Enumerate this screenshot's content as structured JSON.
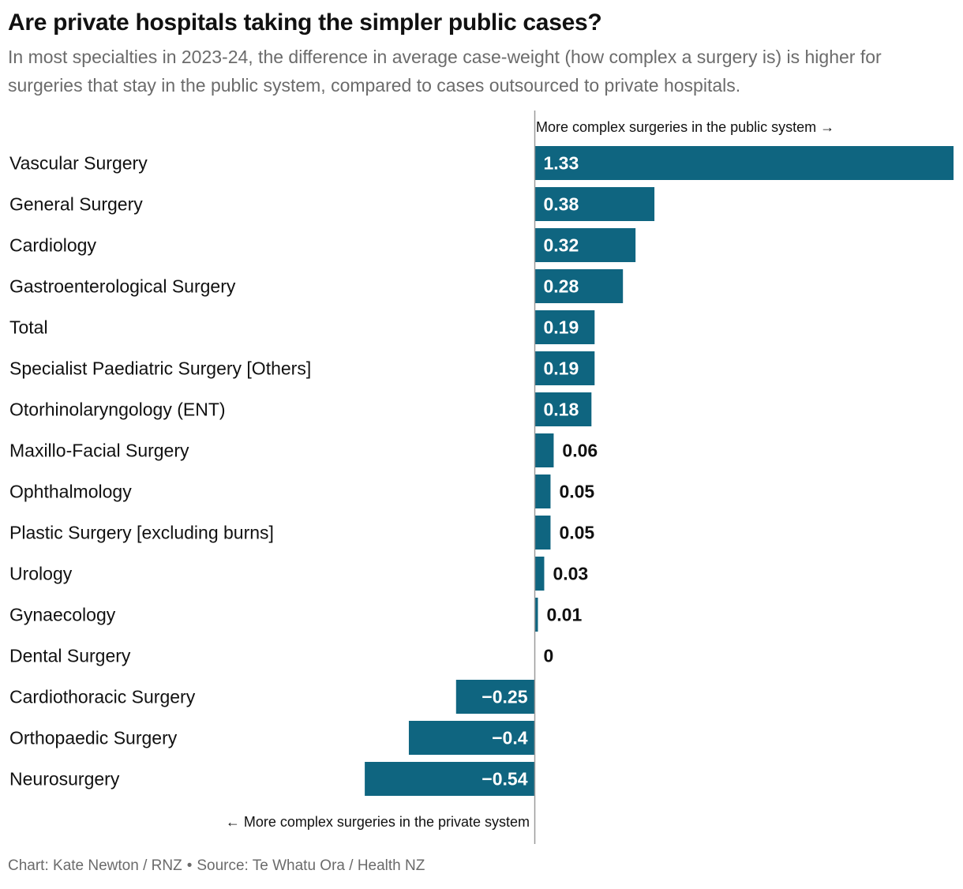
{
  "title": "Are private hospitals taking the simpler public cases?",
  "subtitle": "In most specialties in 2023-24, the difference in average case-weight (how complex a surgery is) is higher for surgeries that stay in the public system, compared to cases outsourced to private hospitals.",
  "footer": {
    "chart_credit": "Chart: Kate Newton / RNZ",
    "separator": "•",
    "source": "Source: Te Whatu Ora / Health NZ"
  },
  "colors": {
    "bar": "#0f6580",
    "axis": "#9a9a9a"
  },
  "chart_data": {
    "type": "bar",
    "orientation": "horizontal",
    "title": "Are private hospitals taking the simpler public cases?",
    "annotations": {
      "positive": "More complex surgeries in the public system →",
      "negative": "← More complex surgeries in the private system"
    },
    "categories": [
      "Vascular Surgery",
      "General Surgery",
      "Cardiology",
      "Gastroenterological Surgery",
      "Total",
      "Specialist Paediatric Surgery [Others]",
      "Otorhinolaryngology (ENT)",
      "Maxillo-Facial Surgery",
      "Ophthalmology",
      "Plastic Surgery [excluding burns]",
      "Urology",
      "Gynaecology",
      "Dental Surgery",
      "Cardiothoracic Surgery",
      "Orthopaedic Surgery",
      "Neurosurgery"
    ],
    "values": [
      1.33,
      0.38,
      0.32,
      0.28,
      0.19,
      0.19,
      0.18,
      0.06,
      0.05,
      0.05,
      0.03,
      0.01,
      0,
      -0.25,
      -0.4,
      -0.54
    ],
    "labels": [
      "1.33",
      "0.38",
      "0.32",
      "0.28",
      "0.19",
      "0.19",
      "0.18",
      "0.06",
      "0.05",
      "0.05",
      "0.03",
      "0.01",
      "0",
      "−0.25",
      "−0.4",
      "−0.54"
    ],
    "xlim": [
      -0.54,
      1.33
    ]
  }
}
